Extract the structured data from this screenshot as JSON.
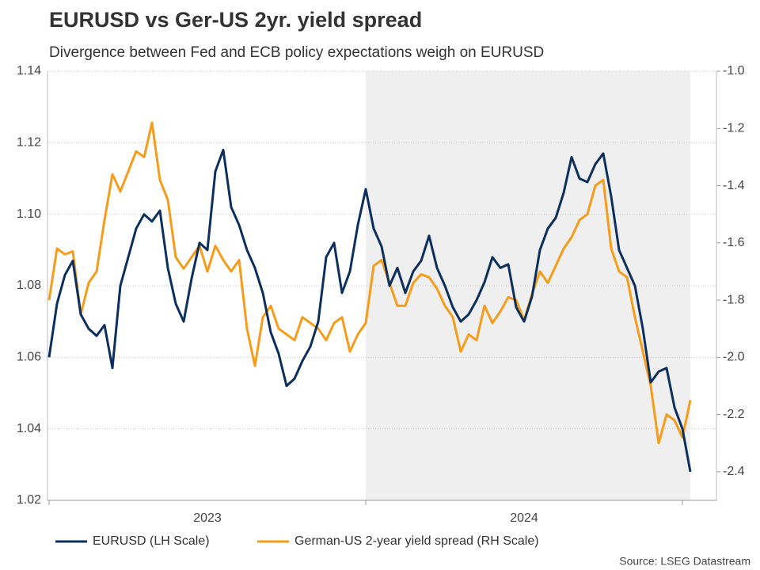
{
  "chart_data": {
    "type": "line",
    "title": "EURUSD vs Ger-US 2yr. yield spread",
    "subtitle": "Divergence between Fed and ECB policy expectations weigh on EURUSD",
    "source": "Source: LSEG Datastream",
    "categories": [
      null,
      null,
      null,
      null,
      null,
      null,
      null,
      null,
      null,
      null,
      null,
      null,
      null,
      null,
      null,
      null,
      null,
      null,
      null,
      null,
      "2023",
      null,
      null,
      null,
      null,
      null,
      null,
      null,
      null,
      null,
      null,
      null,
      null,
      null,
      null,
      null,
      null,
      null,
      null,
      null,
      null,
      null,
      null,
      null,
      null,
      null,
      null,
      null,
      null,
      null,
      null,
      null,
      null,
      null,
      null,
      null,
      null,
      null,
      null,
      null,
      "2024",
      null,
      null,
      null,
      null,
      null,
      null,
      null,
      null,
      null,
      null,
      null,
      null,
      null,
      null,
      null,
      null,
      null,
      null,
      null,
      null,
      null
    ],
    "ylim": [
      1.02,
      1.14
    ],
    "yticks": [
      1.02,
      1.04,
      1.06,
      1.08,
      {
        "value": 1.1,
        "label": "1.10"
      },
      1.12,
      1.14
    ],
    "y2lim": [
      -2.5,
      -1.0
    ],
    "y2ticks": [
      -2.4,
      -2.2,
      {
        "value": -2.0,
        "label": "-2.0"
      },
      -1.8,
      -1.6,
      -1.4,
      -1.2,
      {
        "value": -1.0,
        "label": "-1.0"
      }
    ],
    "grid": true,
    "series": [
      {
        "name": "EURUSD (LH Scale)",
        "color": "#0d2f5e",
        "axis": "y",
        "values": [
          1.06,
          1.075,
          1.083,
          1.087,
          1.072,
          1.068,
          1.066,
          1.069,
          1.057,
          1.08,
          1.088,
          1.096,
          1.1,
          1.098,
          1.101,
          1.085,
          1.075,
          1.07,
          1.082,
          1.092,
          1.09,
          1.112,
          1.118,
          1.102,
          1.097,
          1.09,
          1.085,
          1.078,
          1.067,
          1.061,
          1.052,
          1.054,
          1.059,
          1.063,
          1.07,
          1.088,
          1.092,
          1.078,
          1.084,
          1.097,
          1.107,
          1.096,
          1.091,
          1.08,
          1.085,
          1.078,
          1.084,
          1.087,
          1.094,
          1.085,
          1.08,
          1.074,
          1.07,
          1.072,
          1.076,
          1.081,
          1.088,
          1.085,
          1.086,
          1.074,
          1.07,
          1.077,
          1.09,
          1.096,
          1.099,
          1.106,
          1.116,
          1.11,
          1.109,
          1.114,
          1.117,
          1.105,
          1.09,
          1.085,
          1.08,
          1.068,
          1.053,
          1.056,
          1.057,
          1.046,
          1.04,
          1.028
        ]
      },
      {
        "name": "German-US 2-year yield spread (RH Scale)",
        "color": "#f59c1a",
        "axis": "y2",
        "values": [
          -1.8,
          -1.62,
          -1.64,
          -1.63,
          -1.85,
          -1.74,
          -1.7,
          -1.52,
          -1.36,
          -1.42,
          -1.35,
          -1.28,
          -1.3,
          -1.18,
          -1.38,
          -1.45,
          -1.65,
          -1.69,
          -1.65,
          -1.61,
          -1.7,
          -1.61,
          -1.66,
          -1.7,
          -1.66,
          -1.9,
          -2.03,
          -1.86,
          -1.82,
          -1.9,
          -1.92,
          -1.94,
          -1.86,
          -1.88,
          -1.9,
          -1.94,
          -1.88,
          -1.86,
          -1.98,
          -1.92,
          -1.88,
          -1.68,
          -1.66,
          -1.74,
          -1.82,
          -1.82,
          -1.74,
          -1.71,
          -1.72,
          -1.76,
          -1.82,
          -1.86,
          -1.98,
          -1.92,
          -1.94,
          -1.82,
          -1.88,
          -1.84,
          -1.79,
          -1.8,
          -1.87,
          -1.78,
          -1.7,
          -1.74,
          -1.68,
          -1.62,
          -1.58,
          -1.52,
          -1.5,
          -1.4,
          -1.38,
          -1.62,
          -1.7,
          -1.72,
          -1.86,
          -1.98,
          -2.1,
          -2.3,
          -2.2,
          -2.22,
          -2.28,
          -2.15
        ]
      }
    ]
  }
}
